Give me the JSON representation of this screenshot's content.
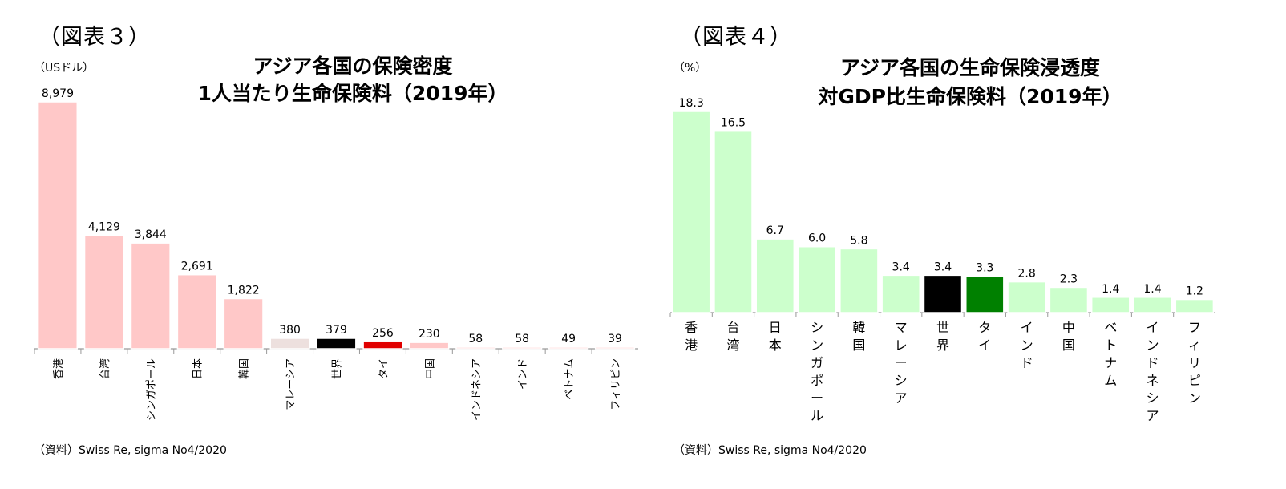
{
  "charts": [
    {
      "figure_label": "（図表３）",
      "unit_label": "（USドル）",
      "title_line1": "アジア各国の保険密度",
      "title_line2": "1人当たり生命保険料（2019年）",
      "source": "（資料）Swiss Re, sigma No4/2020",
      "colors": {
        "default": "#ffc8c8",
        "light": "#ede0de",
        "world": "#000000",
        "thailand": "#e00000"
      }
    },
    {
      "figure_label": "（図表４）",
      "unit_label": "（%）",
      "title_line1": "アジア各国の生命保険浸透度",
      "title_line2": "対GDP比生命保険料（2019年）",
      "source": "（資料）Swiss Re, sigma No4/2020",
      "colors": {
        "default": "#ccffcc",
        "world": "#000000",
        "thailand": "#008000"
      }
    }
  ],
  "chart_data": [
    {
      "type": "bar",
      "title": "アジア各国の保険密度 1人当たり生命保険料（2019年）",
      "ylabel": "（USドル）",
      "categories": [
        "香港",
        "台湾",
        "シンガポール",
        "日本",
        "韓国",
        "マレーシア",
        "世界",
        "タイ",
        "中国",
        "インドネシア",
        "インド",
        "ベトナム",
        "フィリピン"
      ],
      "values": [
        8979,
        4129,
        3844,
        2691,
        1822,
        380,
        379,
        256,
        230,
        58,
        58,
        49,
        39
      ],
      "value_labels": [
        "8,979",
        "4,129",
        "3,844",
        "2,691",
        "1,822",
        "380",
        "379",
        "256",
        "230",
        "58",
        "58",
        "49",
        "39"
      ],
      "bar_colors": [
        "#ffc8c8",
        "#ffc8c8",
        "#ffc8c8",
        "#ffc8c8",
        "#ffc8c8",
        "#ede0de",
        "#000000",
        "#e00000",
        "#ffc8c8",
        "#ffc8c8",
        "#ffc8c8",
        "#ffc8c8",
        "#ffc8c8"
      ],
      "grid": false,
      "legend": "none"
    },
    {
      "type": "bar",
      "title": "アジア各国の生命保険浸透度 対GDP比生命保険料（2019年）",
      "ylabel": "（%）",
      "categories": [
        "香港",
        "台湾",
        "日本",
        "シンガポール",
        "韓国",
        "マレーシア",
        "世界",
        "タイ",
        "インド",
        "中国",
        "ベトナム",
        "インドネシア",
        "フィリピン"
      ],
      "values": [
        18.3,
        16.5,
        6.7,
        6.0,
        5.8,
        3.4,
        3.4,
        3.3,
        2.8,
        2.3,
        1.4,
        1.4,
        1.2
      ],
      "value_labels": [
        "18.3",
        "16.5",
        "6.7",
        "6.0",
        "5.8",
        "3.4",
        "3.4",
        "3.3",
        "2.8",
        "2.3",
        "1.4",
        "1.4",
        "1.2"
      ],
      "bar_colors": [
        "#ccffcc",
        "#ccffcc",
        "#ccffcc",
        "#ccffcc",
        "#ccffcc",
        "#ccffcc",
        "#000000",
        "#008000",
        "#ccffcc",
        "#ccffcc",
        "#ccffcc",
        "#ccffcc",
        "#ccffcc"
      ],
      "grid": false,
      "legend": "none"
    }
  ]
}
